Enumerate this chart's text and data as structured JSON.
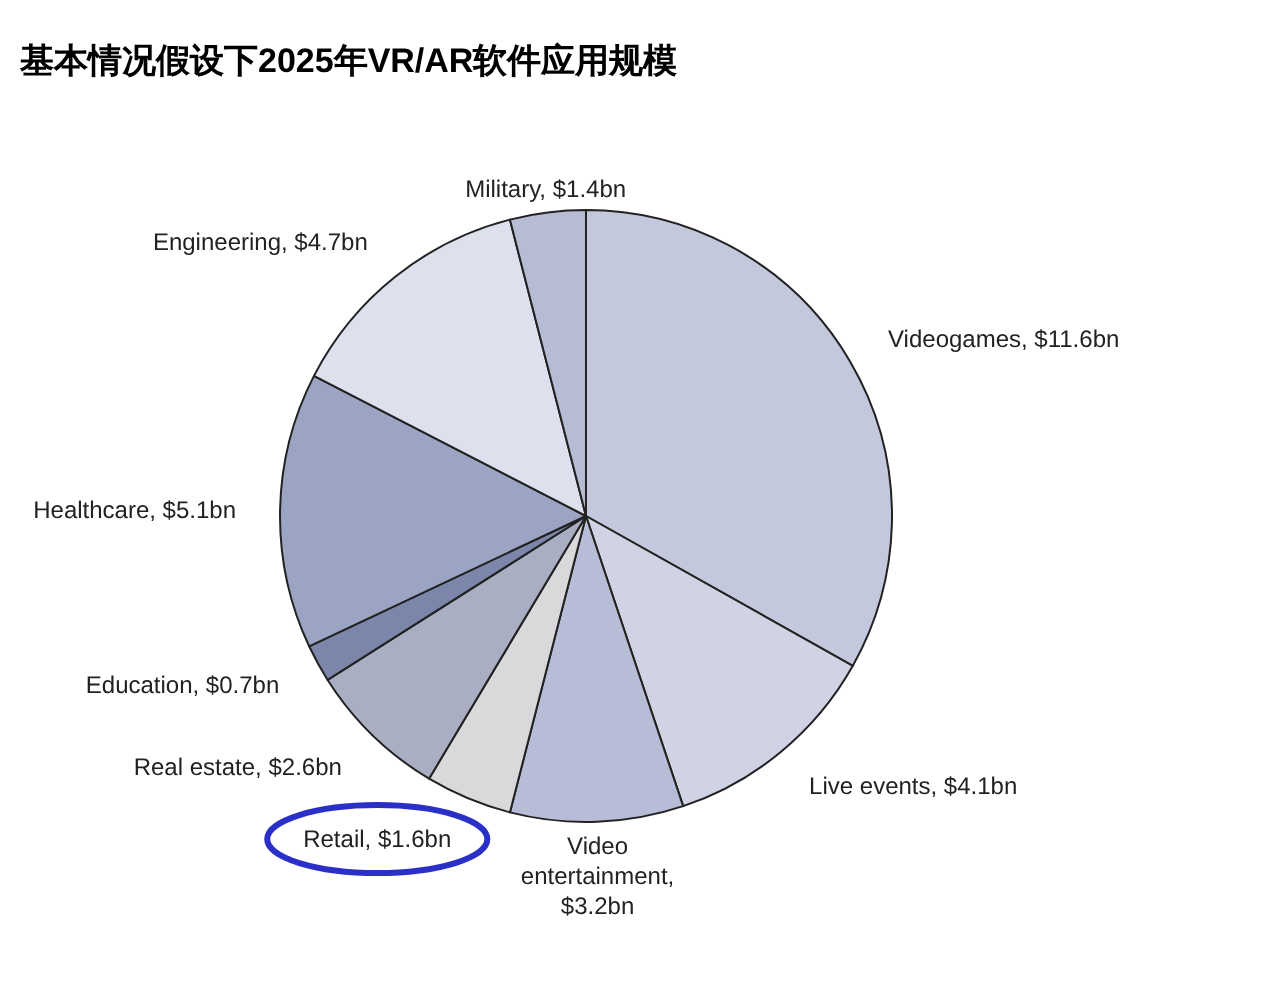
{
  "chart_data": {
    "type": "pie",
    "title": "基本情况假设下2025年VR/AR软件应用规模",
    "categories": [
      "Videogames, $11.6bn",
      "Live events, $4.1bn",
      "Video entertainment, $3.2bn",
      "Retail, $1.6bn",
      "Real estate, $2.6bn",
      "Education, $0.7bn",
      "Healthcare, $5.1bn",
      "Engineering, $4.7bn",
      "Military, $1.4bn"
    ],
    "values": [
      11.6,
      4.1,
      3.2,
      1.6,
      2.6,
      0.7,
      5.1,
      4.7,
      1.4
    ],
    "colors": [
      "#c3c8dc",
      "#cfd3e4",
      "#b7bdd6",
      "#d9d9dc",
      "#a9aec2",
      "#7c86ab",
      "#9ba4c2",
      "#dde0ed",
      "#b6bcd4"
    ]
  }
}
